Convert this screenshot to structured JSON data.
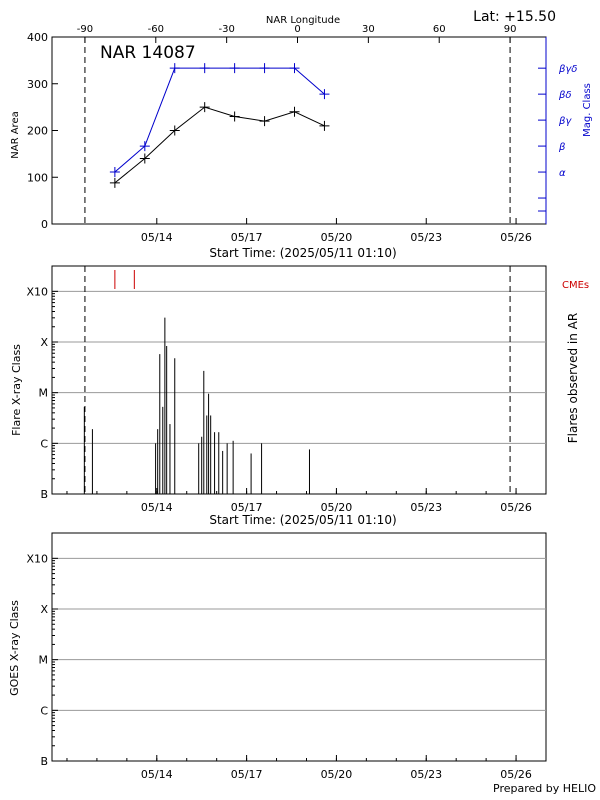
{
  "header": {
    "lat_label": "Lat: +15.50",
    "prepared_by": "Prepared by HELIO"
  },
  "colors": {
    "mag_class": "#0000cc",
    "cme": "#cc0000",
    "grid": "#9a9a9a"
  },
  "chart_data": [
    {
      "type": "line",
      "title": "NAR 14087",
      "x_top_label": "NAR Longitude",
      "x_top_ticks": [
        "-90",
        "-60",
        "-30",
        "0",
        "30",
        "60",
        "90"
      ],
      "x_top_tick_values": [
        -90,
        -60,
        -30,
        0,
        30,
        60,
        90
      ],
      "xlabel": "Start Time: (2025/05/11 01:10)",
      "x_ticks": [
        "05/14",
        "05/17",
        "05/20",
        "05/23",
        "05/26"
      ],
      "x_tick_values": [
        3.0,
        6.0,
        9.0,
        12.0,
        15.0
      ],
      "xlim_days": [
        -0.5,
        16.0
      ],
      "ylabel": "NAR Area",
      "ylim": [
        0,
        400
      ],
      "y_ticks": [
        "0",
        "100",
        "200",
        "300",
        "400"
      ],
      "y_tick_values": [
        0,
        100,
        200,
        300,
        400
      ],
      "y2label": "Mag. Class",
      "y2_ticks": [
        "α",
        "β",
        "βγ",
        "βδ",
        "βγδ"
      ],
      "y2_tick_values": [
        1,
        2,
        3,
        4,
        5
      ],
      "y2lim": [
        -1,
        6.2
      ],
      "limb_markers_days": [
        0.6,
        14.8
      ],
      "series": [
        {
          "name": "NAR Area",
          "x": [
            1.6,
            2.6,
            3.6,
            4.6,
            5.6,
            6.6,
            7.6,
            8.6
          ],
          "values": [
            88,
            140,
            200,
            250,
            230,
            220,
            240,
            210
          ]
        },
        {
          "name": "Mag. Class",
          "x": [
            1.6,
            2.6,
            3.6,
            4.6,
            5.6,
            6.6,
            7.6,
            8.6
          ],
          "values": [
            1,
            2,
            5,
            5,
            5,
            5,
            5,
            4
          ]
        }
      ]
    },
    {
      "type": "bar",
      "ylabel": "Flare X-ray Class",
      "y2label": "Flares observed in AR",
      "xlabel": "Start Time: (2025/05/11 01:10)",
      "x_ticks": [
        "05/14",
        "05/17",
        "05/20",
        "05/23",
        "05/26"
      ],
      "x_tick_values": [
        3.0,
        6.0,
        9.0,
        12.0,
        15.0
      ],
      "xlim_days": [
        -0.5,
        16.0
      ],
      "y_ticks": [
        "B",
        "C",
        "M",
        "X",
        "X10"
      ],
      "y_tick_values": [
        0,
        1,
        2,
        3,
        4
      ],
      "ylim": [
        0,
        4.5
      ],
      "cme_label": "CMEs",
      "cme_times_days": [
        1.6,
        2.25
      ],
      "limb_markers_days": [
        0.6,
        14.8
      ],
      "flares": {
        "t": [
          0.58,
          0.85,
          2.96,
          3.03,
          3.1,
          3.2,
          3.27,
          3.33,
          3.44,
          3.6,
          4.4,
          4.5,
          4.57,
          4.67,
          4.73,
          4.8,
          4.93,
          5.07,
          5.2,
          5.35,
          5.55,
          6.15,
          6.5,
          8.1
        ],
        "class": [
          1.72,
          1.28,
          1.0,
          1.28,
          2.76,
          1.72,
          3.48,
          2.92,
          1.38,
          2.68,
          1.0,
          1.13,
          2.43,
          1.55,
          1.98,
          1.55,
          1.22,
          1.22,
          0.85,
          1.0,
          1.05,
          0.8,
          1.0,
          0.88
        ]
      }
    },
    {
      "type": "bar",
      "ylabel": "GOES X-ray Class",
      "x_ticks": [
        "05/14",
        "05/17",
        "05/20",
        "05/23",
        "05/26"
      ],
      "x_tick_values": [
        3.0,
        6.0,
        9.0,
        12.0,
        15.0
      ],
      "xlim_days": [
        -0.5,
        16.0
      ],
      "y_ticks": [
        "B",
        "C",
        "M",
        "X",
        "X10"
      ],
      "y_tick_values": [
        0,
        1,
        2,
        3,
        4
      ],
      "ylim": [
        0,
        4.5
      ],
      "values": []
    }
  ]
}
